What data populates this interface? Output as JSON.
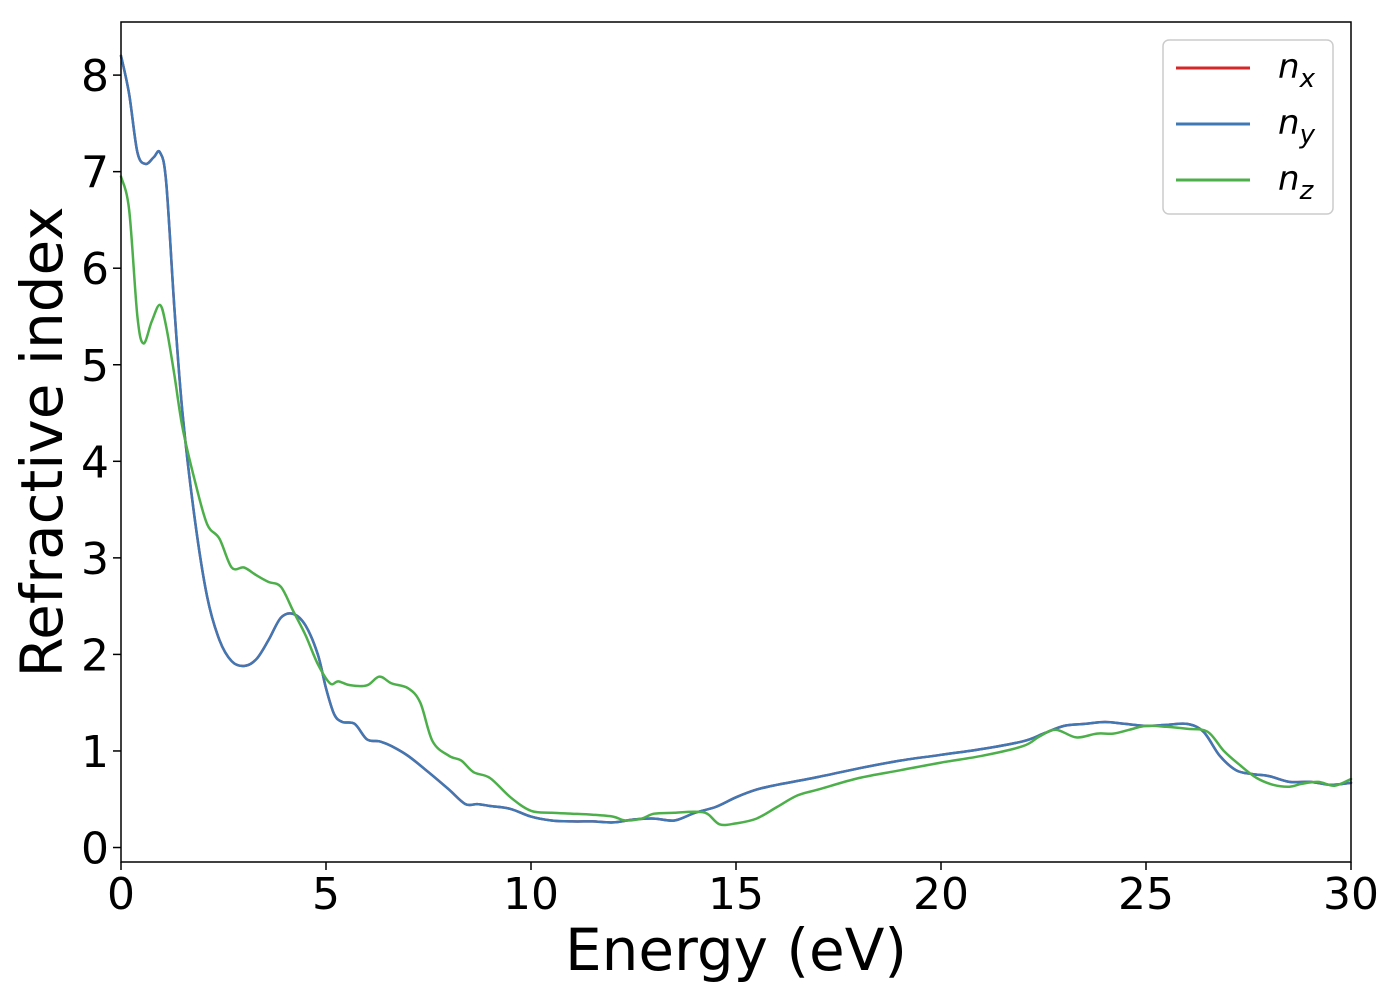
{
  "chart_data": {
    "type": "line",
    "title": "",
    "xlabel": "Energy (eV)",
    "ylabel": "Refractive index",
    "xlim": [
      0,
      30
    ],
    "ylim": [
      -0.15,
      8.55
    ],
    "xticks": [
      0,
      5,
      10,
      15,
      20,
      25,
      30
    ],
    "yticks": [
      0,
      1,
      2,
      3,
      4,
      5,
      6,
      7,
      8
    ],
    "grid": false,
    "legend_position": "top-right",
    "series": [
      {
        "name": "n_x",
        "label_base": "n",
        "label_sub": "x",
        "color": "#d62728",
        "points": [
          [
            0,
            8.2
          ],
          [
            0.2,
            7.8
          ],
          [
            0.4,
            7.2
          ],
          [
            0.6,
            7.08
          ],
          [
            0.8,
            7.15
          ],
          [
            0.95,
            7.2
          ],
          [
            1.1,
            6.9
          ],
          [
            1.3,
            5.6
          ],
          [
            1.5,
            4.5
          ],
          [
            1.8,
            3.4
          ],
          [
            2.1,
            2.6
          ],
          [
            2.4,
            2.15
          ],
          [
            2.7,
            1.93
          ],
          [
            3.0,
            1.88
          ],
          [
            3.3,
            1.95
          ],
          [
            3.6,
            2.15
          ],
          [
            3.9,
            2.38
          ],
          [
            4.2,
            2.42
          ],
          [
            4.5,
            2.3
          ],
          [
            4.8,
            2.0
          ],
          [
            5.0,
            1.65
          ],
          [
            5.2,
            1.38
          ],
          [
            5.4,
            1.3
          ],
          [
            5.7,
            1.28
          ],
          [
            6.0,
            1.12
          ],
          [
            6.3,
            1.1
          ],
          [
            6.6,
            1.05
          ],
          [
            7.0,
            0.95
          ],
          [
            7.5,
            0.78
          ],
          [
            8.0,
            0.6
          ],
          [
            8.4,
            0.45
          ],
          [
            8.7,
            0.45
          ],
          [
            9.0,
            0.43
          ],
          [
            9.5,
            0.4
          ],
          [
            10.0,
            0.32
          ],
          [
            10.5,
            0.28
          ],
          [
            11.0,
            0.27
          ],
          [
            11.5,
            0.27
          ],
          [
            12.0,
            0.26
          ],
          [
            12.5,
            0.29
          ],
          [
            13.0,
            0.3
          ],
          [
            13.5,
            0.28
          ],
          [
            14.0,
            0.36
          ],
          [
            14.5,
            0.42
          ],
          [
            15.0,
            0.52
          ],
          [
            15.5,
            0.6
          ],
          [
            16.0,
            0.65
          ],
          [
            17.0,
            0.73
          ],
          [
            18.0,
            0.82
          ],
          [
            19.0,
            0.9
          ],
          [
            20.0,
            0.96
          ],
          [
            21.0,
            1.02
          ],
          [
            22.0,
            1.1
          ],
          [
            22.5,
            1.18
          ],
          [
            23.0,
            1.26
          ],
          [
            23.5,
            1.28
          ],
          [
            24.0,
            1.3
          ],
          [
            24.5,
            1.28
          ],
          [
            25.0,
            1.26
          ],
          [
            25.5,
            1.27
          ],
          [
            26.0,
            1.28
          ],
          [
            26.4,
            1.2
          ],
          [
            26.8,
            0.95
          ],
          [
            27.2,
            0.8
          ],
          [
            27.6,
            0.76
          ],
          [
            28.0,
            0.74
          ],
          [
            28.5,
            0.68
          ],
          [
            29.0,
            0.68
          ],
          [
            29.5,
            0.65
          ],
          [
            30.0,
            0.67
          ]
        ]
      },
      {
        "name": "n_y",
        "label_base": "n",
        "label_sub": "y",
        "color": "#3f78b4",
        "points": [
          [
            0,
            8.2
          ],
          [
            0.2,
            7.8
          ],
          [
            0.4,
            7.2
          ],
          [
            0.6,
            7.08
          ],
          [
            0.8,
            7.15
          ],
          [
            0.95,
            7.2
          ],
          [
            1.1,
            6.9
          ],
          [
            1.3,
            5.6
          ],
          [
            1.5,
            4.5
          ],
          [
            1.8,
            3.4
          ],
          [
            2.1,
            2.6
          ],
          [
            2.4,
            2.15
          ],
          [
            2.7,
            1.93
          ],
          [
            3.0,
            1.88
          ],
          [
            3.3,
            1.95
          ],
          [
            3.6,
            2.15
          ],
          [
            3.9,
            2.38
          ],
          [
            4.2,
            2.42
          ],
          [
            4.5,
            2.3
          ],
          [
            4.8,
            2.0
          ],
          [
            5.0,
            1.65
          ],
          [
            5.2,
            1.38
          ],
          [
            5.4,
            1.3
          ],
          [
            5.7,
            1.28
          ],
          [
            6.0,
            1.12
          ],
          [
            6.3,
            1.1
          ],
          [
            6.6,
            1.05
          ],
          [
            7.0,
            0.95
          ],
          [
            7.5,
            0.78
          ],
          [
            8.0,
            0.6
          ],
          [
            8.4,
            0.45
          ],
          [
            8.7,
            0.45
          ],
          [
            9.0,
            0.43
          ],
          [
            9.5,
            0.4
          ],
          [
            10.0,
            0.32
          ],
          [
            10.5,
            0.28
          ],
          [
            11.0,
            0.27
          ],
          [
            11.5,
            0.27
          ],
          [
            12.0,
            0.26
          ],
          [
            12.5,
            0.29
          ],
          [
            13.0,
            0.3
          ],
          [
            13.5,
            0.28
          ],
          [
            14.0,
            0.36
          ],
          [
            14.5,
            0.42
          ],
          [
            15.0,
            0.52
          ],
          [
            15.5,
            0.6
          ],
          [
            16.0,
            0.65
          ],
          [
            17.0,
            0.73
          ],
          [
            18.0,
            0.82
          ],
          [
            19.0,
            0.9
          ],
          [
            20.0,
            0.96
          ],
          [
            21.0,
            1.02
          ],
          [
            22.0,
            1.1
          ],
          [
            22.5,
            1.18
          ],
          [
            23.0,
            1.26
          ],
          [
            23.5,
            1.28
          ],
          [
            24.0,
            1.3
          ],
          [
            24.5,
            1.28
          ],
          [
            25.0,
            1.26
          ],
          [
            25.5,
            1.27
          ],
          [
            26.0,
            1.28
          ],
          [
            26.4,
            1.2
          ],
          [
            26.8,
            0.95
          ],
          [
            27.2,
            0.8
          ],
          [
            27.6,
            0.76
          ],
          [
            28.0,
            0.74
          ],
          [
            28.5,
            0.68
          ],
          [
            29.0,
            0.68
          ],
          [
            29.5,
            0.65
          ],
          [
            30.0,
            0.67
          ]
        ]
      },
      {
        "name": "n_z",
        "label_base": "n",
        "label_sub": "z",
        "color": "#4daf4a",
        "points": [
          [
            0,
            6.95
          ],
          [
            0.2,
            6.6
          ],
          [
            0.4,
            5.5
          ],
          [
            0.55,
            5.22
          ],
          [
            0.75,
            5.45
          ],
          [
            0.95,
            5.62
          ],
          [
            1.1,
            5.4
          ],
          [
            1.3,
            4.9
          ],
          [
            1.5,
            4.35
          ],
          [
            1.8,
            3.8
          ],
          [
            2.1,
            3.35
          ],
          [
            2.4,
            3.2
          ],
          [
            2.7,
            2.9
          ],
          [
            3.0,
            2.9
          ],
          [
            3.3,
            2.82
          ],
          [
            3.6,
            2.75
          ],
          [
            3.9,
            2.7
          ],
          [
            4.2,
            2.45
          ],
          [
            4.5,
            2.2
          ],
          [
            4.8,
            1.9
          ],
          [
            5.1,
            1.7
          ],
          [
            5.3,
            1.72
          ],
          [
            5.6,
            1.68
          ],
          [
            6.0,
            1.68
          ],
          [
            6.3,
            1.77
          ],
          [
            6.6,
            1.7
          ],
          [
            7.0,
            1.65
          ],
          [
            7.3,
            1.5
          ],
          [
            7.6,
            1.1
          ],
          [
            8.0,
            0.95
          ],
          [
            8.3,
            0.9
          ],
          [
            8.6,
            0.78
          ],
          [
            9.0,
            0.72
          ],
          [
            9.5,
            0.52
          ],
          [
            10.0,
            0.38
          ],
          [
            10.5,
            0.36
          ],
          [
            11.0,
            0.35
          ],
          [
            11.5,
            0.34
          ],
          [
            12.0,
            0.32
          ],
          [
            12.3,
            0.28
          ],
          [
            12.7,
            0.3
          ],
          [
            13.0,
            0.35
          ],
          [
            13.5,
            0.36
          ],
          [
            14.0,
            0.37
          ],
          [
            14.3,
            0.35
          ],
          [
            14.6,
            0.24
          ],
          [
            15.0,
            0.25
          ],
          [
            15.5,
            0.3
          ],
          [
            16.0,
            0.42
          ],
          [
            16.5,
            0.54
          ],
          [
            17.0,
            0.6
          ],
          [
            18.0,
            0.72
          ],
          [
            19.0,
            0.8
          ],
          [
            20.0,
            0.88
          ],
          [
            21.0,
            0.95
          ],
          [
            22.0,
            1.05
          ],
          [
            22.4,
            1.15
          ],
          [
            22.8,
            1.22
          ],
          [
            23.3,
            1.14
          ],
          [
            23.8,
            1.18
          ],
          [
            24.2,
            1.18
          ],
          [
            24.6,
            1.22
          ],
          [
            25.0,
            1.26
          ],
          [
            25.5,
            1.25
          ],
          [
            26.0,
            1.23
          ],
          [
            26.5,
            1.2
          ],
          [
            26.9,
            1.0
          ],
          [
            27.3,
            0.85
          ],
          [
            27.7,
            0.72
          ],
          [
            28.1,
            0.65
          ],
          [
            28.5,
            0.63
          ],
          [
            28.8,
            0.66
          ],
          [
            29.2,
            0.68
          ],
          [
            29.6,
            0.64
          ],
          [
            30.0,
            0.71
          ]
        ]
      }
    ]
  }
}
